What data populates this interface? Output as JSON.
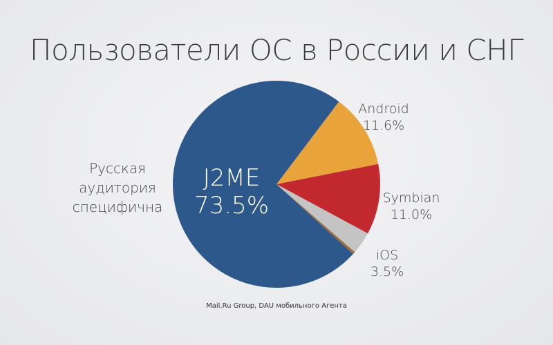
{
  "title": "Пользователи ОС в России и СНГ",
  "side_note": "Русская аудитория специфична",
  "source": "Mail.Ru Group, DAU мобильного Агента",
  "chart_data": {
    "type": "pie",
    "title": "Пользователи ОС в России и СНГ",
    "slices": [
      {
        "name": "Android",
        "value": 11.6,
        "label": "11.6%",
        "color": "#e9a33b"
      },
      {
        "name": "Symbian",
        "value": 11.0,
        "label": "11.0%",
        "color": "#c1292f"
      },
      {
        "name": "iOS",
        "value": 3.5,
        "label": "3.5%",
        "color": "#c4c4c4"
      },
      {
        "name": "",
        "value": 0.4,
        "label": "",
        "color": "#9b6b3b"
      },
      {
        "name": "J2ME",
        "value": 73.5,
        "label": "73.5%",
        "color": "#2d588b"
      }
    ],
    "legend": "none"
  }
}
